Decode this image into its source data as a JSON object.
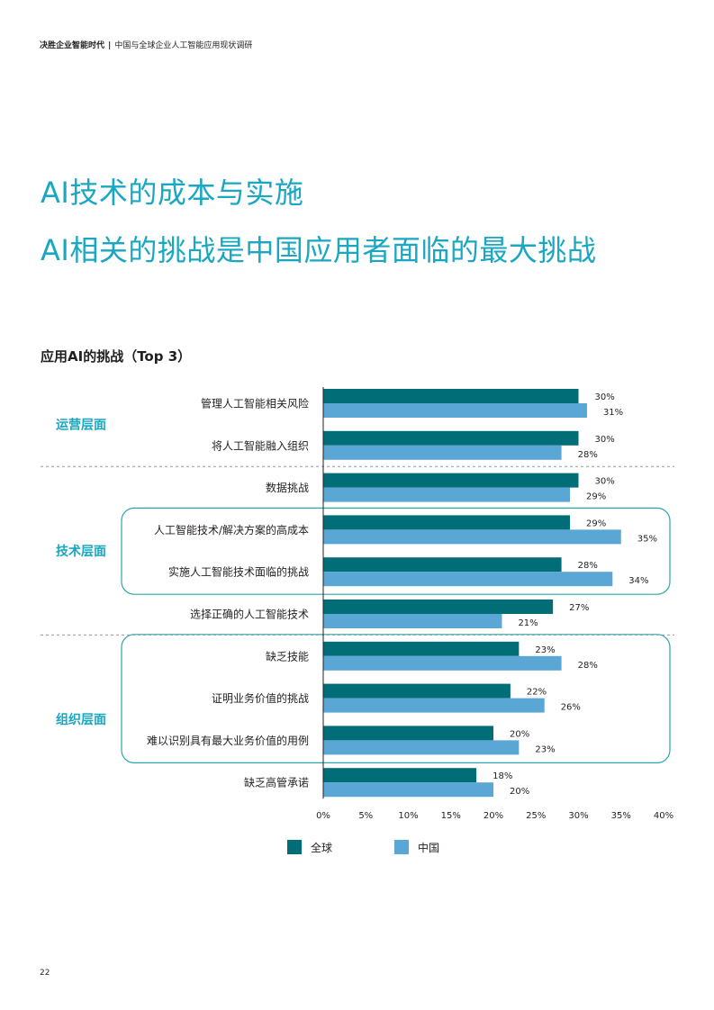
{
  "header": {
    "main": "决胜企业智能时代",
    "separator": "|",
    "sub": "中国与全球企业人工智能应用现状调研"
  },
  "titles": {
    "line1": "AI技术的成本与实施",
    "line2": "AI相关的挑战是中国应用者面临的最大挑战"
  },
  "chart_heading": "应用AI的挑战（Top 3）",
  "groups": [
    {
      "label": "运营层面"
    },
    {
      "label": "技术层面"
    },
    {
      "label": "组织层面"
    }
  ],
  "colors": {
    "global": "#006d77",
    "china": "#5aa7d6",
    "accent": "#1aa7c1",
    "box": "#2aa6a9",
    "divider": "#9a9a9a"
  },
  "legend": [
    {
      "label": "全球",
      "color": "#006d77"
    },
    {
      "label": "中国",
      "color": "#5aa7d6"
    }
  ],
  "chart_data": {
    "type": "bar",
    "orientation": "horizontal",
    "categories": [
      "管理人工智能相关风险",
      "将人工智能融入组织",
      "数据挑战",
      "人工智能技术/解决方案的高成本",
      "实施人工智能技术面临的挑战",
      "选择正确的人工智能技术",
      "缺乏技能",
      "证明业务价值的挑战",
      "难以识别具有最大业务价值的用例",
      "缺乏高管承诺"
    ],
    "series": [
      {
        "name": "全球",
        "values": [
          30,
          30,
          30,
          29,
          28,
          27,
          23,
          22,
          20,
          18
        ]
      },
      {
        "name": "中国",
        "values": [
          31,
          28,
          29,
          35,
          34,
          21,
          28,
          26,
          23,
          20
        ]
      }
    ],
    "value_labels": {
      "全球": [
        "30%",
        "30%",
        "30%",
        "29%",
        "28%",
        "27%",
        "23%",
        "22%",
        "20%",
        "18%"
      ],
      "中国": [
        "31%",
        "28%",
        "29%",
        "35%",
        "34%",
        "21%",
        "28%",
        "26%",
        "23%",
        "20%"
      ]
    },
    "xlim": [
      0,
      40
    ],
    "xticks": [
      "0%",
      "5%",
      "10%",
      "15%",
      "20%",
      "25%",
      "30%",
      "35%",
      "40%"
    ],
    "group_membership": [
      0,
      0,
      1,
      1,
      1,
      1,
      2,
      2,
      2,
      2
    ],
    "highlighted_rows": [
      [
        3,
        4
      ],
      [
        6,
        7,
        8
      ]
    ],
    "grid": false,
    "legend_position": "bottom"
  },
  "page_number": "22"
}
